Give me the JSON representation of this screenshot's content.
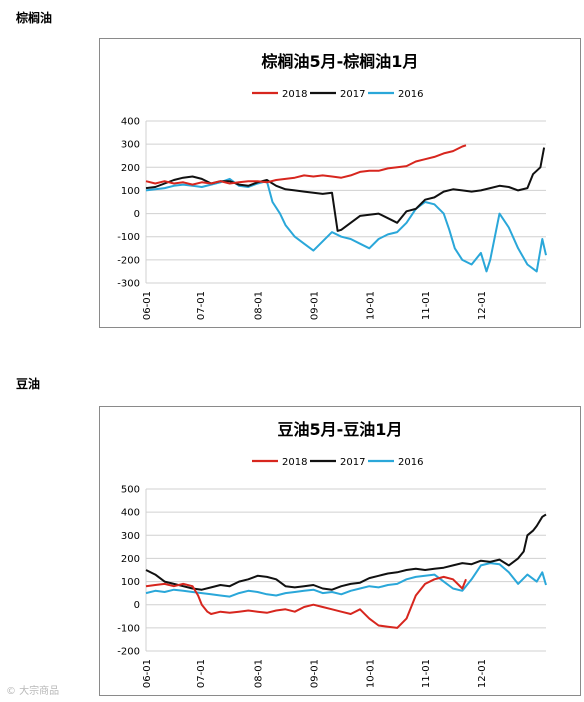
{
  "sections": [
    {
      "label": "棕榈油"
    },
    {
      "label": "豆油"
    }
  ],
  "watermark": "© 大宗商品",
  "chart_data": [
    {
      "type": "line",
      "title": "棕榈油5月-棕榈油1月",
      "ylim": [
        -300,
        400
      ],
      "yticks": [
        400,
        300,
        200,
        100,
        0,
        -100,
        -200,
        -300
      ],
      "xlim": [
        0,
        215
      ],
      "xtick_positions": [
        0,
        29,
        60,
        90,
        120,
        150,
        180
      ],
      "xtick_labels": [
        "06-01",
        "07-01",
        "08-01",
        "09-01",
        "10-01",
        "11-01",
        "12-01"
      ],
      "grid": true,
      "legend_position": "top",
      "series": [
        {
          "name": "2018",
          "color": "#d7261e",
          "x": [
            0,
            5,
            10,
            15,
            20,
            25,
            30,
            35,
            40,
            45,
            50,
            55,
            60,
            65,
            70,
            75,
            80,
            85,
            90,
            95,
            100,
            105,
            110,
            115,
            120,
            125,
            130,
            135,
            140,
            145,
            150,
            155,
            160,
            165,
            170,
            172
          ],
          "y": [
            140,
            130,
            140,
            130,
            135,
            125,
            135,
            130,
            140,
            130,
            135,
            140,
            140,
            135,
            145,
            150,
            155,
            165,
            160,
            165,
            160,
            155,
            165,
            180,
            185,
            185,
            195,
            200,
            205,
            225,
            235,
            245,
            260,
            270,
            290,
            295
          ]
        },
        {
          "name": "2017",
          "color": "#111111",
          "x": [
            0,
            5,
            10,
            15,
            20,
            25,
            30,
            35,
            40,
            45,
            50,
            55,
            60,
            65,
            70,
            75,
            80,
            85,
            90,
            95,
            100,
            103,
            105,
            110,
            115,
            120,
            125,
            130,
            135,
            140,
            145,
            150,
            155,
            160,
            165,
            170,
            175,
            180,
            185,
            190,
            195,
            200,
            205,
            208,
            212,
            214
          ],
          "y": [
            110,
            115,
            130,
            145,
            155,
            160,
            150,
            130,
            140,
            140,
            125,
            120,
            135,
            145,
            120,
            105,
            100,
            95,
            90,
            85,
            90,
            -75,
            -70,
            -40,
            -10,
            -5,
            0,
            -20,
            -40,
            10,
            20,
            60,
            70,
            95,
            105,
            100,
            95,
            100,
            110,
            120,
            115,
            100,
            110,
            170,
            200,
            285
          ]
        },
        {
          "name": "2016",
          "color": "#2aa7d9",
          "x": [
            0,
            5,
            10,
            15,
            20,
            25,
            30,
            35,
            40,
            45,
            50,
            55,
            60,
            65,
            68,
            72,
            75,
            80,
            85,
            90,
            95,
            100,
            105,
            110,
            115,
            120,
            125,
            130,
            135,
            140,
            145,
            150,
            155,
            160,
            163,
            166,
            170,
            175,
            180,
            183,
            185,
            190,
            195,
            200,
            205,
            210,
            213,
            215
          ],
          "y": [
            100,
            105,
            110,
            120,
            125,
            120,
            115,
            125,
            135,
            150,
            120,
            115,
            130,
            140,
            50,
            0,
            -50,
            -100,
            -130,
            -160,
            -120,
            -80,
            -100,
            -110,
            -130,
            -150,
            -110,
            -90,
            -80,
            -40,
            20,
            50,
            40,
            0,
            -70,
            -150,
            -200,
            -220,
            -170,
            -250,
            -200,
            0,
            -60,
            -150,
            -220,
            -250,
            -110,
            -180
          ]
        }
      ]
    },
    {
      "type": "line",
      "title": "豆油5月-豆油1月",
      "ylim": [
        -200,
        500
      ],
      "yticks": [
        500,
        400,
        300,
        200,
        100,
        0,
        -100,
        -200
      ],
      "xlim": [
        0,
        215
      ],
      "xtick_positions": [
        0,
        29,
        60,
        90,
        120,
        150,
        180
      ],
      "xtick_labels": [
        "06-01",
        "07-01",
        "08-01",
        "09-01",
        "10-01",
        "11-01",
        "12-01"
      ],
      "grid": true,
      "legend_position": "top",
      "series": [
        {
          "name": "2018",
          "color": "#d7261e",
          "x": [
            0,
            5,
            10,
            15,
            20,
            25,
            28,
            30,
            33,
            35,
            40,
            45,
            50,
            55,
            60,
            65,
            70,
            75,
            80,
            85,
            90,
            95,
            100,
            105,
            110,
            115,
            120,
            125,
            130,
            135,
            140,
            145,
            150,
            155,
            160,
            165,
            170,
            172
          ],
          "y": [
            80,
            85,
            90,
            80,
            90,
            80,
            40,
            0,
            -30,
            -40,
            -30,
            -35,
            -30,
            -25,
            -30,
            -35,
            -25,
            -20,
            -30,
            -10,
            0,
            -10,
            -20,
            -30,
            -40,
            -20,
            -60,
            -90,
            -95,
            -100,
            -60,
            40,
            90,
            110,
            120,
            110,
            70,
            110
          ]
        },
        {
          "name": "2017",
          "color": "#111111",
          "x": [
            0,
            5,
            10,
            15,
            20,
            25,
            30,
            35,
            40,
            45,
            50,
            55,
            60,
            65,
            70,
            75,
            80,
            85,
            90,
            95,
            100,
            105,
            110,
            115,
            120,
            125,
            130,
            135,
            140,
            145,
            150,
            155,
            160,
            165,
            170,
            175,
            180,
            185,
            190,
            195,
            200,
            203,
            205,
            208,
            210,
            213,
            215
          ],
          "y": [
            150,
            130,
            100,
            90,
            80,
            70,
            65,
            75,
            85,
            80,
            100,
            110,
            125,
            120,
            110,
            80,
            75,
            80,
            85,
            70,
            65,
            80,
            90,
            95,
            115,
            125,
            135,
            140,
            150,
            155,
            150,
            155,
            160,
            170,
            180,
            175,
            190,
            185,
            195,
            170,
            200,
            230,
            300,
            320,
            340,
            380,
            390
          ]
        },
        {
          "name": "2016",
          "color": "#2aa7d9",
          "x": [
            0,
            5,
            10,
            15,
            20,
            25,
            30,
            35,
            40,
            45,
            50,
            55,
            60,
            65,
            70,
            75,
            80,
            85,
            90,
            95,
            100,
            105,
            110,
            115,
            120,
            125,
            130,
            135,
            140,
            145,
            150,
            155,
            160,
            165,
            170,
            175,
            180,
            185,
            190,
            195,
            200,
            205,
            210,
            213,
            215
          ],
          "y": [
            50,
            60,
            55,
            65,
            60,
            55,
            50,
            45,
            40,
            35,
            50,
            60,
            55,
            45,
            40,
            50,
            55,
            60,
            65,
            50,
            55,
            45,
            60,
            70,
            80,
            75,
            85,
            90,
            110,
            120,
            125,
            130,
            100,
            70,
            60,
            110,
            170,
            180,
            175,
            140,
            90,
            130,
            100,
            140,
            85
          ]
        }
      ]
    }
  ]
}
